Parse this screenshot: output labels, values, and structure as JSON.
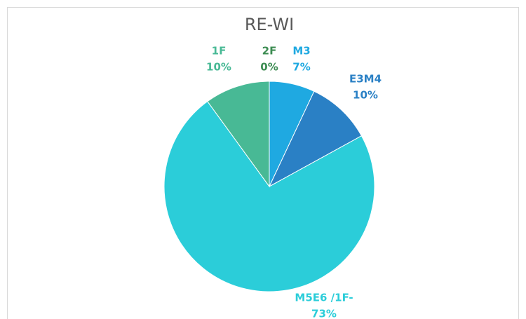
{
  "chart_data": {
    "type": "pie",
    "title": "RE-WI",
    "categories": [
      "M3",
      "E3M4",
      "M5E6 /1F-",
      "1F",
      "2F"
    ],
    "values": [
      7,
      10,
      73,
      10,
      0
    ],
    "value_labels": [
      "7%",
      "10%",
      "73%",
      "10%",
      "0%"
    ],
    "colors": [
      "#1fa9e1",
      "#2a80c5",
      "#2bcdd9",
      "#48b995",
      "#3c8c52"
    ]
  }
}
